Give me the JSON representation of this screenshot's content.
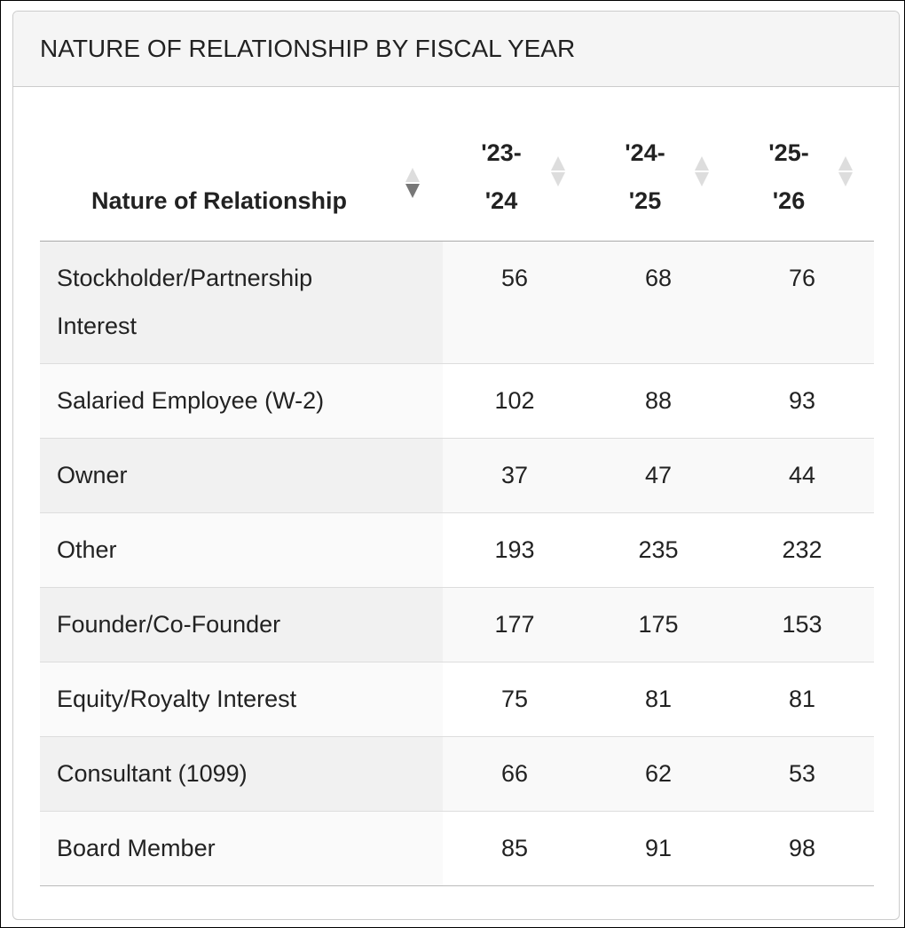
{
  "panel": {
    "title": "NATURE OF RELATIONSHIP BY FISCAL YEAR"
  },
  "table": {
    "columns": [
      {
        "label": "Nature of Relationship",
        "sort": "descending"
      },
      {
        "label": "'23-'24",
        "sort": "none"
      },
      {
        "label": "'24-'25",
        "sort": "none"
      },
      {
        "label": "'25-'26",
        "sort": "none"
      }
    ],
    "rows": [
      [
        "Stockholder/Partnership Interest",
        "56",
        "68",
        "76"
      ],
      [
        "Salaried Employee (W-2)",
        "102",
        "88",
        "93"
      ],
      [
        "Owner",
        "37",
        "47",
        "44"
      ],
      [
        "Other",
        "193",
        "235",
        "232"
      ],
      [
        "Founder/Co-Founder",
        "177",
        "175",
        "153"
      ],
      [
        "Equity/Royalty Interest",
        "75",
        "81",
        "81"
      ],
      [
        "Consultant (1099)",
        "66",
        "62",
        "53"
      ],
      [
        "Board Member",
        "85",
        "91",
        "98"
      ]
    ]
  }
}
